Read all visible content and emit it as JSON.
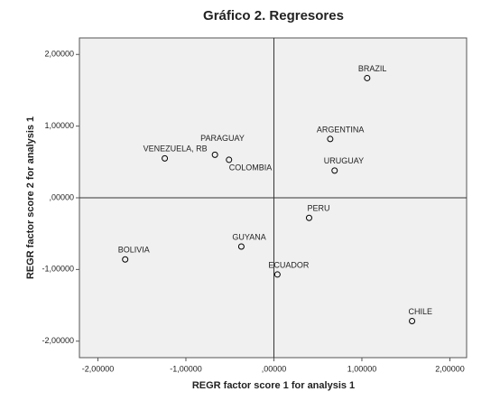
{
  "chart_data": {
    "type": "scatter",
    "title": "Gráfico 2. Regresores",
    "x_label": "REGR factor score   1 for analysis 1",
    "y_label": "REGR factor score   2 for analysis 1",
    "labels": [
      "BRAZIL",
      "ARGENTINA",
      "URUGUAY",
      "PARAGUAY",
      "VENEZUELA, RB",
      "COLOMBIA",
      "PERU",
      "GUYANA",
      "BOLIVIA",
      "ECUADOR",
      "CHILE"
    ],
    "x": [
      1.06,
      0.64,
      0.69,
      -0.67,
      -1.24,
      -0.51,
      0.4,
      -0.37,
      -1.69,
      0.04,
      1.57
    ],
    "y": [
      1.67,
      0.82,
      0.38,
      0.6,
      0.55,
      0.53,
      -0.28,
      -0.68,
      -0.86,
      -1.07,
      -1.72
    ],
    "color": "#000000",
    "xlim": [
      -2.21,
      2.19
    ],
    "ylim": [
      -2.23,
      2.23
    ],
    "xticks": [
      {
        "value": -2,
        "label": "-2,00000"
      },
      {
        "value": -1,
        "label": "-1,00000"
      },
      {
        "value": 0,
        "label": ",00000"
      },
      {
        "value": 1,
        "label": "1,00000"
      },
      {
        "value": 2,
        "label": "2,00000"
      }
    ],
    "yticks": [
      {
        "value": -2,
        "label": "-2,00000"
      },
      {
        "value": -1,
        "label": "-1,00000"
      },
      {
        "value": 0,
        "label": ",00000"
      },
      {
        "value": 1,
        "label": "1,00000"
      },
      {
        "value": 2,
        "label": "2,00000"
      }
    ]
  }
}
